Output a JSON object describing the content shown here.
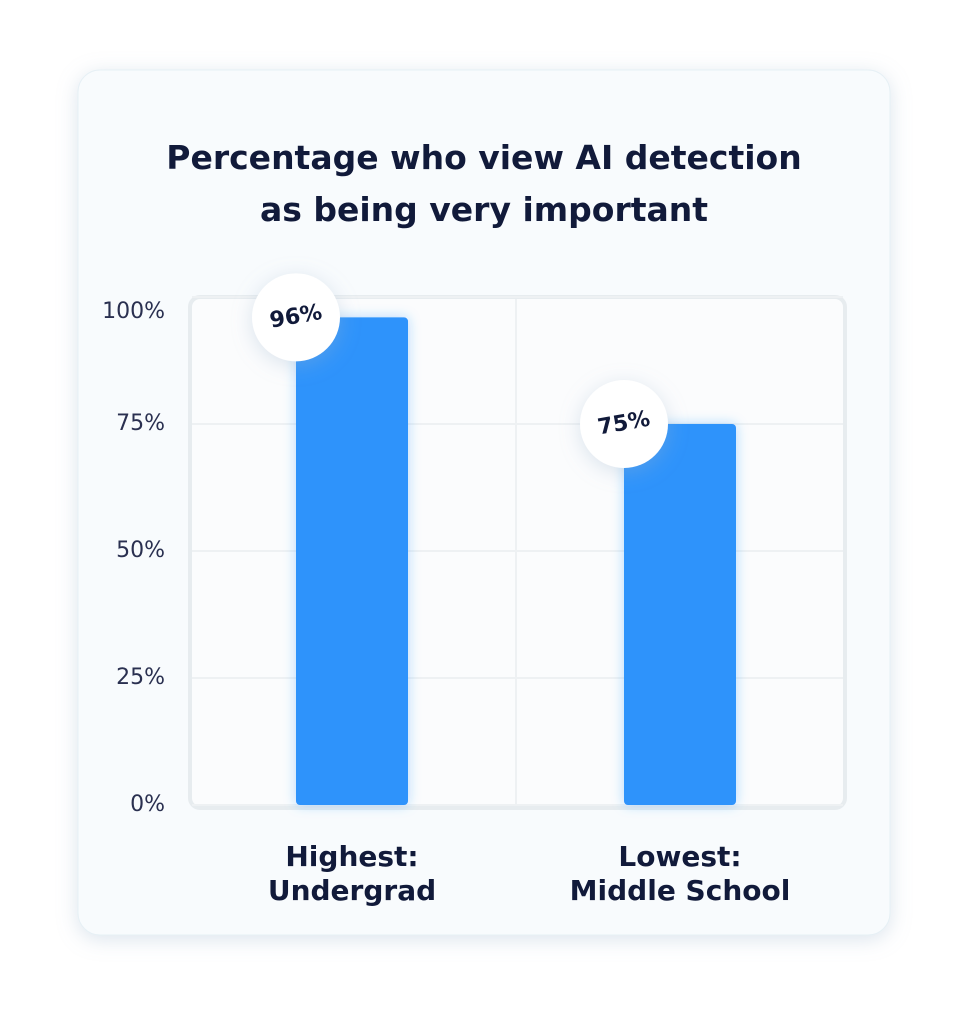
{
  "chart_data": {
    "type": "bar",
    "title": "Percentage who view AI detection as being very important",
    "categories": [
      "Highest:\nUndergrad",
      "Lowest:\nMiddle School"
    ],
    "values": [
      96,
      75
    ],
    "value_labels": [
      "96%",
      "75%"
    ],
    "color": "#2e93fb",
    "ylim": [
      0,
      100
    ],
    "yticks": [
      {
        "value": 0,
        "label": "0%"
      },
      {
        "value": 25,
        "label": "25%"
      },
      {
        "value": 50,
        "label": "50%"
      },
      {
        "value": 75,
        "label": "75%"
      },
      {
        "value": 100,
        "label": "100%"
      }
    ],
    "grid": true
  }
}
